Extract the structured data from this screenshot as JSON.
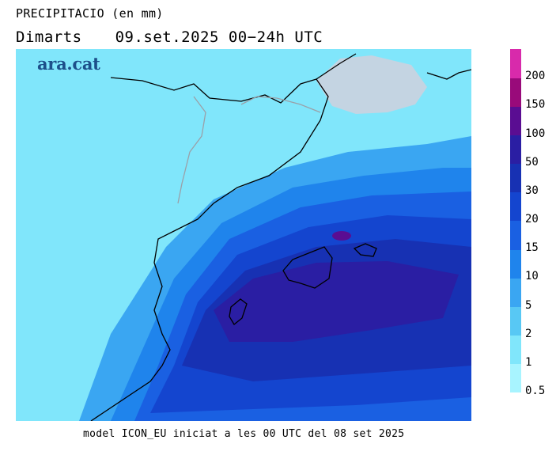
{
  "title": {
    "variable": "PRECIPITACIO (en mm)",
    "day": "Dimarts",
    "period": "09.set.2025 00−24h UTC"
  },
  "logo": "ara.cat",
  "footer": "model ICON_EU iniciat a les 00 UTC del 08 set 2025",
  "legend": {
    "labels": [
      "0.5",
      "1",
      "2",
      "5",
      "10",
      "15",
      "20",
      "30",
      "50",
      "100",
      "150",
      "200"
    ],
    "colors": [
      "#a8f4ff",
      "#80e6fb",
      "#58c8f4",
      "#3aa6f2",
      "#1f84ec",
      "#1a60e2",
      "#1445cf",
      "#1731b3",
      "#2a1ea3",
      "#5a0d92",
      "#990a7a",
      "#d82aab"
    ]
  },
  "map": {
    "sea_color": "#1e2bb5",
    "land_color": "#c4d4e2",
    "border_color": "#000000"
  }
}
